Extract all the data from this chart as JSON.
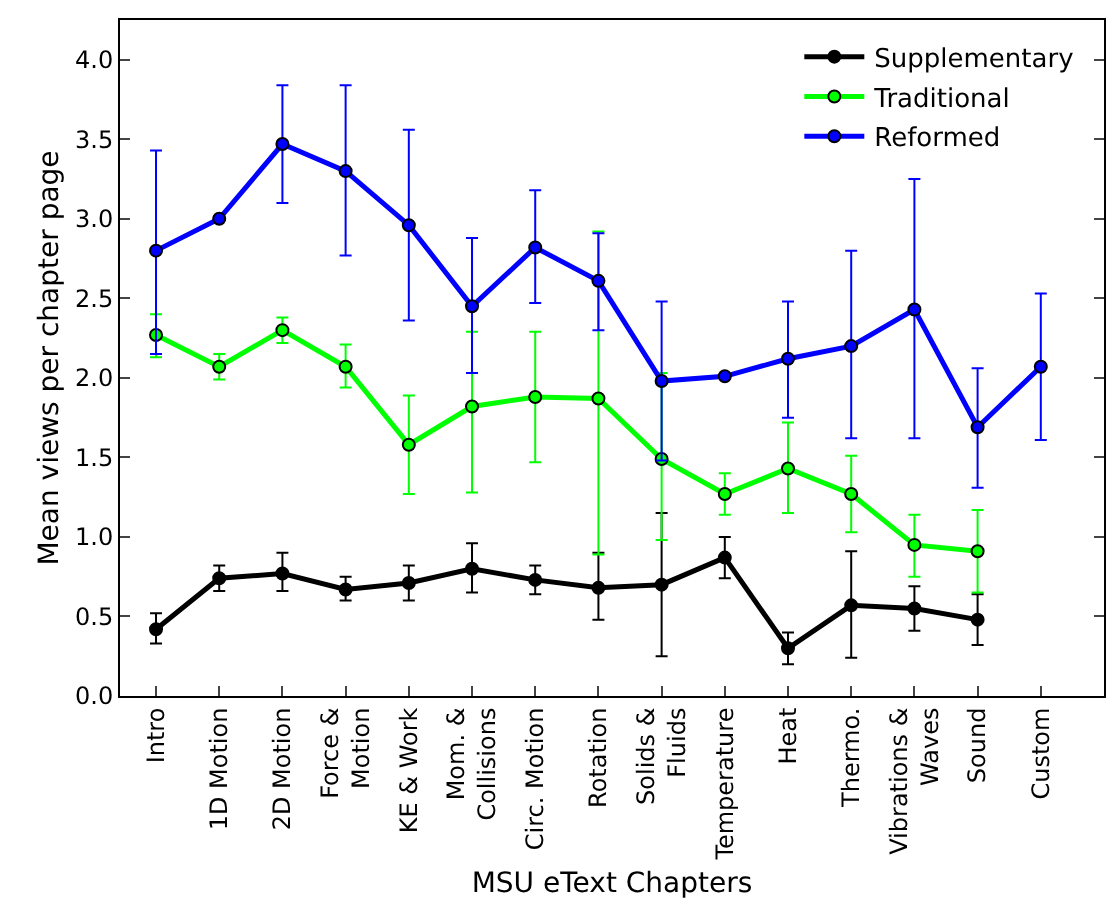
{
  "chart_data": {
    "type": "line",
    "xlabel": "MSU eText Chapters",
    "ylabel": "Mean views per chapter page",
    "categories": [
      "Intro",
      "1D Motion",
      "2D Motion",
      "Force &\nMotion",
      "KE & Work",
      "Mom. &\nCollisions",
      "Circ. Motion",
      "Rotation",
      "Solids &\nFluids",
      "Temperature",
      "Heat",
      "Thermo.",
      "Vibrations &\nWaves",
      "Sound",
      "Custom"
    ],
    "series": [
      {
        "name": "Supplementary",
        "color": "#000000",
        "values": [
          0.42,
          0.74,
          0.77,
          0.67,
          0.71,
          0.8,
          0.73,
          0.68,
          0.7,
          0.87,
          0.3,
          0.57,
          0.55,
          0.48,
          null
        ],
        "errors": [
          [
            0.33,
            0.52
          ],
          [
            0.66,
            0.82
          ],
          [
            0.66,
            0.9
          ],
          [
            0.6,
            0.75
          ],
          [
            0.6,
            0.82
          ],
          [
            0.65,
            0.96
          ],
          [
            0.64,
            0.82
          ],
          [
            0.48,
            0.9
          ],
          [
            0.25,
            1.15
          ],
          [
            0.74,
            1.0
          ],
          [
            0.2,
            0.4
          ],
          [
            0.24,
            0.91
          ],
          [
            0.41,
            0.69
          ],
          [
            0.32,
            0.64
          ],
          null
        ]
      },
      {
        "name": "Traditional",
        "color": "#00ff00",
        "values": [
          2.27,
          2.07,
          2.3,
          2.07,
          1.58,
          1.82,
          1.88,
          1.87,
          1.49,
          1.27,
          1.43,
          1.27,
          0.95,
          0.91,
          null
        ],
        "errors": [
          [
            2.13,
            2.4
          ],
          [
            1.99,
            2.15
          ],
          [
            2.22,
            2.38
          ],
          [
            1.94,
            2.21
          ],
          [
            1.27,
            1.89
          ],
          [
            1.28,
            2.29
          ],
          [
            1.47,
            2.29
          ],
          [
            0.89,
            2.92
          ],
          [
            0.98,
            2.03
          ],
          [
            1.14,
            1.4
          ],
          [
            1.15,
            1.72
          ],
          [
            1.03,
            1.51
          ],
          [
            0.75,
            1.14
          ],
          [
            0.65,
            1.17
          ],
          null
        ]
      },
      {
        "name": "Reformed",
        "color": "#0000ff",
        "values": [
          2.8,
          3.0,
          3.47,
          3.3,
          2.96,
          2.45,
          2.82,
          2.61,
          1.98,
          2.01,
          2.12,
          2.2,
          2.43,
          1.69,
          2.07
        ],
        "errors": [
          [
            2.15,
            3.43
          ],
          null,
          [
            3.1,
            3.84
          ],
          [
            2.77,
            3.84
          ],
          [
            2.36,
            3.56
          ],
          [
            2.03,
            2.88
          ],
          [
            2.47,
            3.18
          ],
          [
            2.3,
            2.91
          ],
          [
            1.48,
            2.48
          ],
          null,
          [
            1.75,
            2.48
          ],
          [
            1.62,
            2.8
          ],
          [
            1.62,
            3.25
          ],
          [
            1.31,
            2.06
          ],
          [
            1.61,
            2.53
          ]
        ]
      }
    ],
    "ylim": [
      0,
      4.25
    ],
    "yticks": [
      {
        "value": 0,
        "label": "0.0"
      },
      {
        "value": 0.5,
        "label": "0.5"
      },
      {
        "value": 1,
        "label": "1.0"
      },
      {
        "value": 1.5,
        "label": "1.5"
      },
      {
        "value": 2,
        "label": "2.0"
      },
      {
        "value": 2.5,
        "label": "2.5"
      },
      {
        "value": 3,
        "label": "3.0"
      },
      {
        "value": 3.5,
        "label": "3.5"
      },
      {
        "value": 4,
        "label": "4.0"
      }
    ],
    "grid": false,
    "legend": "top right",
    "marker": "circle",
    "line_style": "solid"
  }
}
